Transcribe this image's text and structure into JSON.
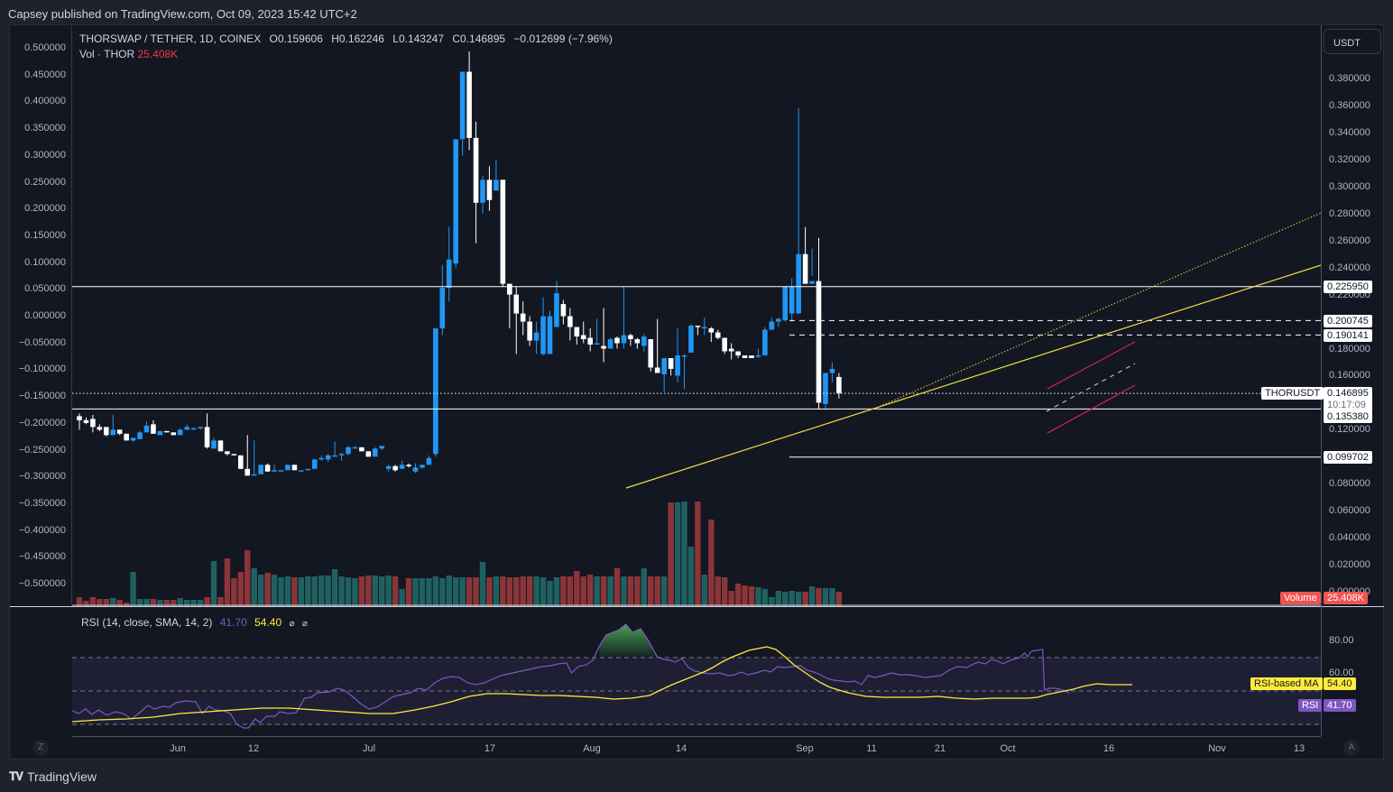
{
  "publish_header": "Capsey published on TradingView.com, Oct 09, 2023 15:42 UTC+2",
  "legend": {
    "symbol": "THORSWAP / TETHER, 1D, COINEX",
    "open": "O0.159606",
    "high": "H0.162246",
    "low": "L0.143247",
    "close": "C0.146895",
    "change": "−0.012699 (−7.96%)",
    "vol_label": "Vol · THOR",
    "vol_value": "25.408K"
  },
  "currency_button": "USDT",
  "left_axis_labels": [
    "0.500000",
    "0.450000",
    "0.400000",
    "0.350000",
    "0.300000",
    "0.250000",
    "0.200000",
    "0.150000",
    "0.100000",
    "0.050000",
    "0.000000",
    "−0.050000",
    "−0.100000",
    "−0.150000",
    "−0.200000",
    "−0.250000",
    "−0.300000",
    "−0.350000",
    "−0.400000",
    "−0.450000",
    "−0.500000"
  ],
  "right_axis_labels": [
    "0.380000",
    "0.360000",
    "0.340000",
    "0.320000",
    "0.300000",
    "0.280000",
    "0.260000",
    "0.240000",
    "0.220000",
    "0.180000",
    "0.160000",
    "0.120000",
    "0.080000",
    "0.060000",
    "0.040000",
    "0.020000",
    "0.000000"
  ],
  "price_tags": {
    "level_1": "0.225950",
    "level_2": "0.200745",
    "level_3": "0.190141",
    "current_symbol": "THORUSDT",
    "current_price": "0.146895",
    "countdown": "10:17:09",
    "level_4": "0.135380",
    "level_5": "0.099702",
    "volume_label": "Volume",
    "volume_value": "25.408K"
  },
  "rsi": {
    "legend_title": "RSI (14, close, SMA, 14, 2)",
    "rsi_value": "41.70",
    "ma_value": "54.40",
    "icon1": "⌀",
    "icon2": "⌀",
    "axis_80": "80.00",
    "axis_60": "60.00",
    "ma_tag_label": "RSI-based MA",
    "ma_tag_value": "54.40",
    "rsi_tag_label": "RSI",
    "rsi_tag_value": "41.70"
  },
  "time_axis": [
    "Jun",
    "12",
    "Jul",
    "17",
    "Aug",
    "14",
    "Sep",
    "11",
    "21",
    "Oct",
    "16",
    "Nov",
    "13"
  ],
  "z_button": "Z",
  "a_button": "A",
  "footer_brand": "TradingView",
  "colors": {
    "up": "#2196f3",
    "down": "#ffffff",
    "vol_up": "#1f6160",
    "vol_down": "#8b3538",
    "trendline": "#f0e040",
    "channel": "#e91e63",
    "rsi_line": "#7e57c2",
    "rsi_ma": "#ffeb3b"
  },
  "chart_data": {
    "type": "candlestick",
    "title": "THORSWAP / TETHER, 1D, COINEX",
    "ylabel": "USDT",
    "ylim": [
      0.0,
      0.39
    ],
    "x_ticks": [
      "Jun",
      "12",
      "Jul",
      "17",
      "Aug",
      "14",
      "Sep",
      "11",
      "21",
      "Oct",
      "16",
      "Nov",
      "13"
    ],
    "last_candle": {
      "open": 0.159606,
      "high": 0.162246,
      "low": 0.143247,
      "close": 0.146895
    },
    "horizontal_levels": [
      0.22595,
      0.200745,
      0.190141,
      0.146895,
      0.13538,
      0.099702
    ],
    "candles_approx": [
      [
        0.13,
        0.132,
        0.12,
        0.127
      ],
      [
        0.127,
        0.129,
        0.124,
        0.125
      ],
      [
        0.128,
        0.131,
        0.118,
        0.122
      ],
      [
        0.122,
        0.124,
        0.119,
        0.12
      ],
      [
        0.122,
        0.122,
        0.115,
        0.116
      ],
      [
        0.116,
        0.131,
        0.116,
        0.12
      ],
      [
        0.12,
        0.12,
        0.116,
        0.117
      ],
      [
        0.117,
        0.117,
        0.112,
        0.112
      ],
      [
        0.112,
        0.114,
        0.111,
        0.114
      ],
      [
        0.113,
        0.119,
        0.113,
        0.118
      ],
      [
        0.118,
        0.126,
        0.118,
        0.123
      ],
      [
        0.124,
        0.127,
        0.117,
        0.117
      ],
      [
        0.116,
        0.119,
        0.116,
        0.119
      ],
      [
        0.119,
        0.119,
        0.118,
        0.118
      ],
      [
        0.118,
        0.118,
        0.116,
        0.116
      ],
      [
        0.116,
        0.121,
        0.116,
        0.12
      ],
      [
        0.12,
        0.124,
        0.12,
        0.122
      ],
      [
        0.12,
        0.122,
        0.12,
        0.121
      ],
      [
        0.121,
        0.122,
        0.12,
        0.122
      ],
      [
        0.122,
        0.132,
        0.106,
        0.107
      ],
      [
        0.106,
        0.114,
        0.106,
        0.112
      ],
      [
        0.112,
        0.112,
        0.104,
        0.104
      ],
      [
        0.104,
        0.104,
        0.101,
        0.102
      ],
      [
        0.102,
        0.102,
        0.101,
        0.101
      ],
      [
        0.101,
        0.101,
        0.091,
        0.091
      ],
      [
        0.091,
        0.116,
        0.086,
        0.086
      ],
      [
        0.087,
        0.112,
        0.087,
        0.087
      ],
      [
        0.087,
        0.094,
        0.087,
        0.094
      ],
      [
        0.094,
        0.095,
        0.089,
        0.089
      ],
      [
        0.089,
        0.094,
        0.089,
        0.09
      ],
      [
        0.09,
        0.09,
        0.09,
        0.09
      ],
      [
        0.09,
        0.094,
        0.09,
        0.094
      ],
      [
        0.094,
        0.094,
        0.09,
        0.09
      ],
      [
        0.09,
        0.09,
        0.09,
        0.09
      ],
      [
        0.09,
        0.091,
        0.09,
        0.091
      ],
      [
        0.091,
        0.098,
        0.091,
        0.098
      ],
      [
        0.098,
        0.101,
        0.097,
        0.099
      ],
      [
        0.098,
        0.102,
        0.096,
        0.101
      ],
      [
        0.101,
        0.111,
        0.1,
        0.101
      ],
      [
        0.101,
        0.103,
        0.097,
        0.102
      ],
      [
        0.102,
        0.108,
        0.101,
        0.107
      ],
      [
        0.107,
        0.108,
        0.107,
        0.107
      ],
      [
        0.107,
        0.107,
        0.104,
        0.104
      ],
      [
        0.104,
        0.104,
        0.1,
        0.1
      ],
      [
        0.1,
        0.107,
        0.1,
        0.106
      ],
      [
        0.106,
        0.108,
        0.105,
        0.108
      ]
    ]
  }
}
